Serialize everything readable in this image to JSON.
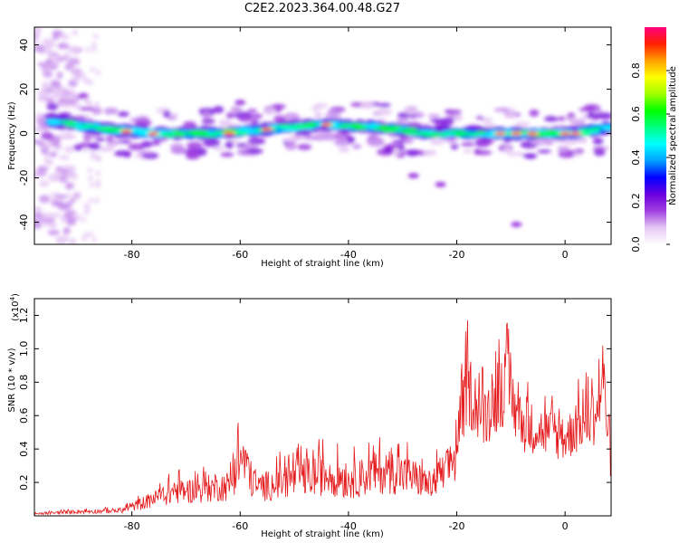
{
  "title": "C2E2.2023.364.00.48.G27",
  "chart_data": [
    {
      "type": "heatmap",
      "title": "C2E2.2023.364.00.48.G27",
      "xlabel": "Height of straight line (km)",
      "ylabel": "Frequency (Hz)",
      "xlim": [
        -98,
        8.5
      ],
      "ylim": [
        -50,
        48
      ],
      "xticks": [
        -80,
        -60,
        -40,
        -20,
        0
      ],
      "yticks": [
        -40,
        -20,
        0,
        20,
        40
      ],
      "colorbar": {
        "label": "Normalized spectral amplitude",
        "range": [
          0,
          1
        ],
        "ticks": [
          "0.0",
          "0.2",
          "0.4",
          "0.6",
          "0.8"
        ],
        "colormap": [
          "#ffffff",
          "#e6c8f5",
          "#a040e0",
          "#6a00e0",
          "#0000ff",
          "#00a0ff",
          "#00ffff",
          "#00ff80",
          "#00ff00",
          "#a0ff00",
          "#ffff00",
          "#ffa000",
          "#ff2000",
          "#ff0080"
        ]
      },
      "ridge": {
        "description_points": [
          {
            "x": -93,
            "y": 5
          },
          {
            "x": -85,
            "y": 2
          },
          {
            "x": -75,
            "y": 0
          },
          {
            "x": -65,
            "y": 0
          },
          {
            "x": -55,
            "y": 2
          },
          {
            "x": -45,
            "y": 4
          },
          {
            "x": -35,
            "y": 3
          },
          {
            "x": -25,
            "y": 0
          },
          {
            "x": -15,
            "y": 0
          },
          {
            "x": -5,
            "y": 0
          },
          {
            "x": 2,
            "y": 0
          },
          {
            "x": 8,
            "y": 3
          }
        ]
      }
    },
    {
      "type": "line",
      "xlabel": "Height of straight line (km)",
      "ylabel": "SNR (10 * v/v)",
      "y_multiplier_label": "(x10",
      "y_multiplier_exp": "4",
      "y_multiplier_close": ")",
      "xlim": [
        -98,
        8.5
      ],
      "ylim": [
        0,
        1.3
      ],
      "xticks": [
        -80,
        -60,
        -40,
        -20,
        0
      ],
      "yticks": [
        0.2,
        0.4,
        0.6,
        0.8,
        1.0,
        1.2
      ],
      "ytick_labels": [
        "0.2",
        "0.4",
        "0.6",
        "0.8",
        "1.0",
        "1.2"
      ],
      "series": [
        {
          "color": "#e41a1c",
          "envelope": [
            {
              "x": -98,
              "y": 0.02
            },
            {
              "x": -90,
              "y": 0.05
            },
            {
              "x": -82,
              "y": 0.06
            },
            {
              "x": -78,
              "y": 0.15
            },
            {
              "x": -72,
              "y": 0.28
            },
            {
              "x": -68,
              "y": 0.3
            },
            {
              "x": -62,
              "y": 0.35
            },
            {
              "x": -60,
              "y": 0.66
            },
            {
              "x": -57,
              "y": 0.32
            },
            {
              "x": -52,
              "y": 0.4
            },
            {
              "x": -48,
              "y": 0.45
            },
            {
              "x": -44,
              "y": 0.48
            },
            {
              "x": -40,
              "y": 0.4
            },
            {
              "x": -35,
              "y": 0.5
            },
            {
              "x": -32,
              "y": 0.52
            },
            {
              "x": -28,
              "y": 0.45
            },
            {
              "x": -25,
              "y": 0.35
            },
            {
              "x": -22,
              "y": 0.5
            },
            {
              "x": -20,
              "y": 0.7
            },
            {
              "x": -18,
              "y": 1.2
            },
            {
              "x": -15,
              "y": 0.9
            },
            {
              "x": -11,
              "y": 1.22
            },
            {
              "x": -8,
              "y": 0.85
            },
            {
              "x": -5,
              "y": 0.8
            },
            {
              "x": -2,
              "y": 0.75
            },
            {
              "x": 0,
              "y": 0.72
            },
            {
              "x": 3,
              "y": 0.85
            },
            {
              "x": 6,
              "y": 0.95
            },
            {
              "x": 7,
              "y": 1.3
            },
            {
              "x": 8.5,
              "y": 0.45
            }
          ]
        }
      ]
    }
  ]
}
